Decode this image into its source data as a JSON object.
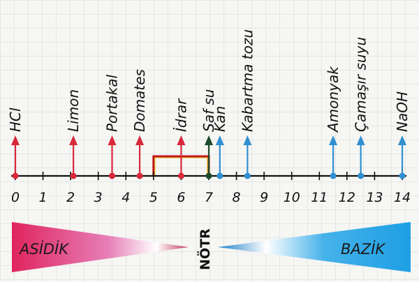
{
  "substances": [
    {
      "label": "HCl",
      "ph": 0,
      "side": "acid"
    },
    {
      "label": "Limon",
      "ph": 2.1,
      "side": "acid"
    },
    {
      "label": "Portakal",
      "ph": 3.5,
      "side": "acid"
    },
    {
      "label": "Domates",
      "ph": 4.5,
      "side": "acid"
    },
    {
      "label": "İdrar",
      "ph": 6,
      "side": "acid"
    },
    {
      "label": "Saf su",
      "ph": 7,
      "side": "neutral"
    },
    {
      "label": "Kan",
      "ph": 7.4,
      "side": "base"
    },
    {
      "label": "Kabartma tozu",
      "ph": 8.4,
      "side": "base"
    },
    {
      "label": "Amonyak",
      "ph": 11.5,
      "side": "base"
    },
    {
      "label": "Çamaşır suyu",
      "ph": 12.5,
      "side": "base"
    },
    {
      "label": "NaOH",
      "ph": 14,
      "side": "base"
    }
  ],
  "scale": {
    "min": 0,
    "max": 14,
    "ticks": [
      "0",
      "1",
      "2",
      "3",
      "4",
      "5",
      "6",
      "7",
      "8",
      "9",
      "10",
      "11",
      "12",
      "13",
      "14"
    ]
  },
  "urine_range": {
    "from": 5,
    "to": 7
  },
  "bands": {
    "acid_label": "ASİDİK",
    "neutral_label": "NÖTR",
    "base_label": "BAZİK"
  },
  "colors": {
    "acid": "#d8283a",
    "neutral": "#1f4a2a",
    "base": "#2f8fd0",
    "axis": "#111111",
    "range": "#c0141a",
    "range_inner": "#e8c020",
    "acid_band": "#e0245e",
    "base_band": "#1ea0e6"
  }
}
